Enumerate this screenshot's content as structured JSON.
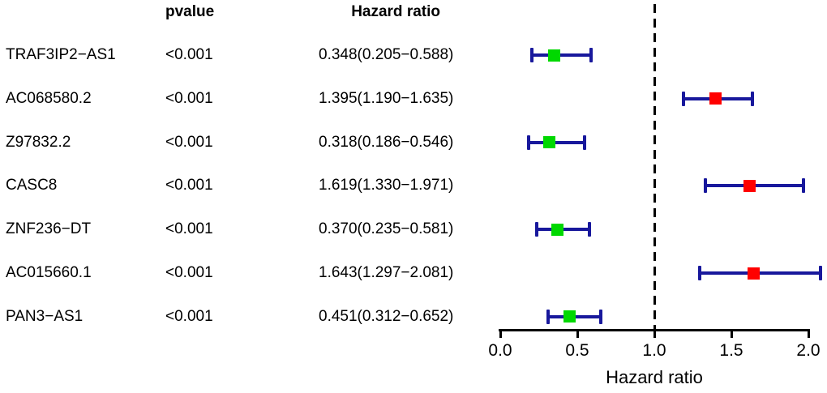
{
  "headers": {
    "pvalue": "pvalue",
    "hazard_ratio": "Hazard ratio"
  },
  "chart_data": {
    "type": "forest",
    "xlabel": "Hazard ratio",
    "xlim": [
      0.0,
      2.0
    ],
    "xticks": [
      0.0,
      0.5,
      1.0,
      1.5,
      2.0
    ],
    "xtick_labels": [
      "0.0",
      "0.5",
      "1.0",
      "1.5",
      "2.0"
    ],
    "reference_line": 1.0,
    "grid": false,
    "rows": [
      {
        "label": "TRAF3IP2−AS1",
        "pvalue": "<0.001",
        "hr_text": "0.348(0.205−0.588)",
        "hr": 0.348,
        "ci_low": 0.205,
        "ci_high": 0.588,
        "effect": "protective"
      },
      {
        "label": "AC068580.2",
        "pvalue": "<0.001",
        "hr_text": "1.395(1.190−1.635)",
        "hr": 1.395,
        "ci_low": 1.19,
        "ci_high": 1.635,
        "effect": "risk"
      },
      {
        "label": "Z97832.2",
        "pvalue": "<0.001",
        "hr_text": "0.318(0.186−0.546)",
        "hr": 0.318,
        "ci_low": 0.186,
        "ci_high": 0.546,
        "effect": "protective"
      },
      {
        "label": "CASC8",
        "pvalue": "<0.001",
        "hr_text": "1.619(1.330−1.971)",
        "hr": 1.619,
        "ci_low": 1.33,
        "ci_high": 1.971,
        "effect": "risk"
      },
      {
        "label": "ZNF236−DT",
        "pvalue": "<0.001",
        "hr_text": "0.370(0.235−0.581)",
        "hr": 0.37,
        "ci_low": 0.235,
        "ci_high": 0.581,
        "effect": "protective"
      },
      {
        "label": "AC015660.1",
        "pvalue": "<0.001",
        "hr_text": "1.643(1.297−2.081)",
        "hr": 1.643,
        "ci_low": 1.297,
        "ci_high": 2.081,
        "effect": "risk"
      },
      {
        "label": "PAN3−AS1",
        "pvalue": "<0.001",
        "hr_text": "0.451(0.312−0.652)",
        "hr": 0.451,
        "ci_low": 0.312,
        "ci_high": 0.652,
        "effect": "protective"
      }
    ],
    "colors": {
      "ci_bar": "#18189c",
      "marker_hr_lt1": "#00d800",
      "marker_hr_gt1": "#ff0000",
      "reference_line": "#000000",
      "axis": "#000000"
    }
  }
}
